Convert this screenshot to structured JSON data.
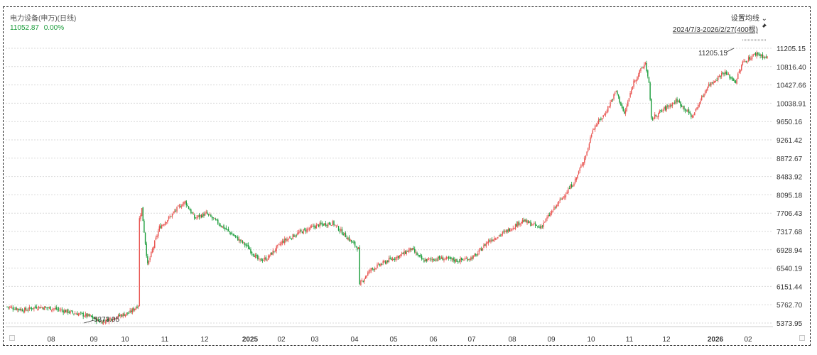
{
  "header": {
    "title": "电力设备(申万)(日线)",
    "price": "11052.87",
    "change": "0.00%",
    "ma_button": "设置均线 ⌄",
    "range": "2024/7/3-2026/2/27(400根)",
    "pin_icon": "pin-icon"
  },
  "colors": {
    "up": "#e8534f",
    "down": "#1a9c3a",
    "grid": "#d9d9d9",
    "text": "#333333"
  },
  "chart_data": {
    "type": "candlestick",
    "y_ticks": [
      "11205.15",
      "10816.40",
      "10427.66",
      "10038.91",
      "9650.16",
      "9261.42",
      "8872.67",
      "8483.92",
      "8095.18",
      "7706.43",
      "7317.68",
      "6928.94",
      "6540.19",
      "6151.44",
      "5762.70",
      "5373.95"
    ],
    "ylim": [
      5373.95,
      11205.15
    ],
    "x_ticks": [
      "08",
      "09",
      "10",
      "11",
      "12",
      "2025",
      "02",
      "03",
      "04",
      "05",
      "06",
      "07",
      "08",
      "09",
      "10",
      "11",
      "12",
      "2026",
      "02"
    ],
    "bold_x_ticks": [
      "2025",
      "2026"
    ],
    "annotations": [
      {
        "label": "5373.95",
        "type": "min",
        "value": 5373.95
      },
      {
        "label": "11205.15",
        "type": "max",
        "value": 11205.15
      }
    ],
    "grid": true,
    "trend_anchors": [
      [
        0,
        5720
      ],
      [
        15,
        5650
      ],
      [
        25,
        5720
      ],
      [
        40,
        5680
      ],
      [
        55,
        5600
      ],
      [
        70,
        5520
      ],
      [
        80,
        5400
      ],
      [
        90,
        5480
      ],
      [
        105,
        5600
      ],
      [
        112,
        5760
      ],
      [
        113,
        7600
      ],
      [
        115,
        7800
      ],
      [
        120,
        6600
      ],
      [
        130,
        7400
      ],
      [
        140,
        7650
      ],
      [
        145,
        7800
      ],
      [
        152,
        7950
      ],
      [
        160,
        7600
      ],
      [
        170,
        7700
      ],
      [
        180,
        7500
      ],
      [
        195,
        7200
      ],
      [
        205,
        7000
      ],
      [
        215,
        6700
      ],
      [
        222,
        6750
      ],
      [
        235,
        7100
      ],
      [
        250,
        7300
      ],
      [
        265,
        7450
      ],
      [
        278,
        7500
      ],
      [
        290,
        7200
      ],
      [
        300,
        6950
      ],
      [
        301,
        6200
      ],
      [
        310,
        6500
      ],
      [
        325,
        6700
      ],
      [
        335,
        6800
      ],
      [
        345,
        6950
      ],
      [
        355,
        6700
      ],
      [
        370,
        6750
      ],
      [
        385,
        6700
      ],
      [
        395,
        6750
      ],
      [
        400,
        6800
      ],
      [
        410,
        7100
      ],
      [
        425,
        7300
      ],
      [
        440,
        7550
      ],
      [
        455,
        7400
      ],
      [
        470,
        7900
      ],
      [
        485,
        8400
      ],
      [
        495,
        9000
      ],
      [
        500,
        9500
      ],
      [
        510,
        9800
      ],
      [
        520,
        10300
      ],
      [
        527,
        9800
      ],
      [
        535,
        10500
      ],
      [
        545,
        10900
      ],
      [
        548,
        10450
      ],
      [
        550,
        9700
      ],
      [
        560,
        9900
      ],
      [
        572,
        10100
      ],
      [
        585,
        9750
      ],
      [
        598,
        10400
      ],
      [
        612,
        10700
      ],
      [
        622,
        10500
      ],
      [
        628,
        10900
      ],
      [
        640,
        11100
      ],
      [
        648,
        11000
      ]
    ]
  }
}
